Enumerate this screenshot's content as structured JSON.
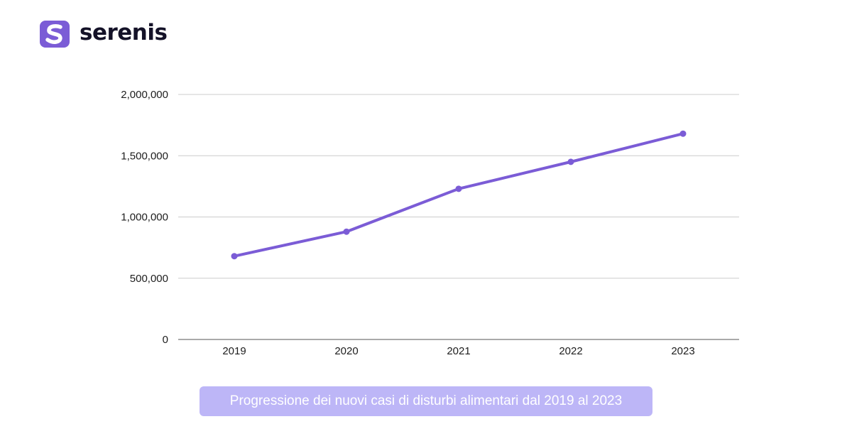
{
  "brand": {
    "name": "serenis",
    "logo_icon": "serenis-s-logo-icon",
    "accent_color": "#7b5cd6"
  },
  "caption": "Progressione dei nuovi casi di disturbi alimentari dal 2019 al 2023",
  "colors": {
    "line": "#7b5cd6",
    "grid": "#cccccc",
    "axis": "#555555",
    "caption_bg": "#bdb6f7"
  },
  "chart_data": {
    "type": "line",
    "x": [
      "2019",
      "2020",
      "2021",
      "2022",
      "2023"
    ],
    "series": [
      {
        "values": [
          680000,
          880000,
          1230000,
          1450000,
          1680000
        ]
      }
    ],
    "ylim": [
      0,
      2000000
    ],
    "yticks": [
      0,
      500000,
      1000000,
      1500000,
      2000000
    ],
    "ytick_labels": [
      "0",
      "500,000",
      "1,000,000",
      "1,500,000",
      "2,000,000"
    ],
    "grid": true,
    "legend": "none",
    "title": "",
    "xlabel": "",
    "ylabel": ""
  }
}
